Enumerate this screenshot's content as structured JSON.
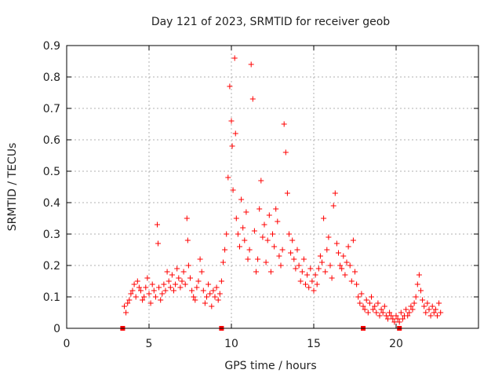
{
  "chart_data": {
    "type": "scatter",
    "title": "Day 121 of 2023, SRMTID for receiver geob",
    "xlabel": "GPS time / hours",
    "ylabel": "SRMTID / TECUs",
    "xlim": [
      0,
      25
    ],
    "ylim": [
      0,
      0.9
    ],
    "xticks": [
      0,
      5,
      10,
      15,
      20
    ],
    "xtick_labels": [
      "0",
      "5",
      "10",
      "15",
      "20"
    ],
    "yticks": [
      0,
      0.1,
      0.2,
      0.3,
      0.4,
      0.5,
      0.6,
      0.7,
      0.8,
      0.9
    ],
    "ytick_labels": [
      "0",
      "0.1",
      "0.2",
      "0.3",
      "0.4",
      "0.5",
      "0.6",
      "0.7",
      "0.8",
      "0.9"
    ],
    "grid": true,
    "legend": "none",
    "colors": {
      "series": "#ff0000",
      "grid": "#b0b0b0",
      "axis": "#000000"
    },
    "series": [
      {
        "name": "SRMTID",
        "marker": "plus",
        "x": [
          3.5,
          3.6,
          3.7,
          3.8,
          3.9,
          4.0,
          4.1,
          4.2,
          4.3,
          4.4,
          4.5,
          4.6,
          4.7,
          4.8,
          4.9,
          5.0,
          5.1,
          5.2,
          5.3,
          5.4,
          5.5,
          5.55,
          5.6,
          5.7,
          5.8,
          5.9,
          6.0,
          6.1,
          6.2,
          6.3,
          6.4,
          6.5,
          6.6,
          6.7,
          6.8,
          6.9,
          7.0,
          7.1,
          7.2,
          7.3,
          7.35,
          7.4,
          7.5,
          7.6,
          7.7,
          7.8,
          7.9,
          8.0,
          8.1,
          8.2,
          8.3,
          8.4,
          8.5,
          8.6,
          8.7,
          8.8,
          8.9,
          9.0,
          9.1,
          9.2,
          9.3,
          9.4,
          9.5,
          9.6,
          9.7,
          9.8,
          9.9,
          10.0,
          10.05,
          10.1,
          10.2,
          10.25,
          10.3,
          10.4,
          10.5,
          10.6,
          10.7,
          10.8,
          10.9,
          11.0,
          11.1,
          11.2,
          11.3,
          11.4,
          11.5,
          11.6,
          11.7,
          11.8,
          11.9,
          12.0,
          12.1,
          12.2,
          12.3,
          12.4,
          12.5,
          12.6,
          12.7,
          12.8,
          12.9,
          13.0,
          13.1,
          13.2,
          13.3,
          13.4,
          13.5,
          13.6,
          13.7,
          13.8,
          13.9,
          14.0,
          14.1,
          14.2,
          14.3,
          14.4,
          14.5,
          14.6,
          14.7,
          14.8,
          14.9,
          15.0,
          15.1,
          15.2,
          15.3,
          15.4,
          15.5,
          15.6,
          15.7,
          15.8,
          15.9,
          16.0,
          16.1,
          16.2,
          16.3,
          16.4,
          16.5,
          16.6,
          16.7,
          16.8,
          16.9,
          17.0,
          17.1,
          17.2,
          17.3,
          17.4,
          17.5,
          17.6,
          17.7,
          17.8,
          17.9,
          18.0,
          18.1,
          18.2,
          18.3,
          18.4,
          18.5,
          18.6,
          18.7,
          18.8,
          18.9,
          19.0,
          19.1,
          19.2,
          19.3,
          19.4,
          19.5,
          19.6,
          19.7,
          19.8,
          19.9,
          20.0,
          20.1,
          20.2,
          20.3,
          20.4,
          20.5,
          20.6,
          20.7,
          20.8,
          20.9,
          21.0,
          21.1,
          21.2,
          21.3,
          21.4,
          21.5,
          21.6,
          21.7,
          21.8,
          21.9,
          22.0,
          22.1,
          22.2,
          22.3,
          22.4,
          22.5,
          22.6,
          22.7
        ],
        "y": [
          0.07,
          0.05,
          0.08,
          0.09,
          0.11,
          0.12,
          0.14,
          0.1,
          0.15,
          0.13,
          0.12,
          0.09,
          0.1,
          0.13,
          0.16,
          0.11,
          0.08,
          0.14,
          0.12,
          0.1,
          0.33,
          0.27,
          0.13,
          0.09,
          0.11,
          0.14,
          0.12,
          0.18,
          0.15,
          0.13,
          0.17,
          0.12,
          0.14,
          0.19,
          0.16,
          0.13,
          0.15,
          0.18,
          0.14,
          0.35,
          0.28,
          0.2,
          0.16,
          0.12,
          0.1,
          0.09,
          0.13,
          0.15,
          0.22,
          0.18,
          0.12,
          0.08,
          0.1,
          0.14,
          0.11,
          0.07,
          0.12,
          0.1,
          0.13,
          0.09,
          0.11,
          0.15,
          0.21,
          0.25,
          0.3,
          0.48,
          0.77,
          0.66,
          0.58,
          0.44,
          0.86,
          0.62,
          0.35,
          0.3,
          0.26,
          0.41,
          0.32,
          0.28,
          0.37,
          0.22,
          0.25,
          0.84,
          0.73,
          0.31,
          0.18,
          0.22,
          0.38,
          0.47,
          0.29,
          0.33,
          0.21,
          0.28,
          0.36,
          0.18,
          0.3,
          0.26,
          0.38,
          0.34,
          0.23,
          0.2,
          0.25,
          0.65,
          0.56,
          0.43,
          0.3,
          0.24,
          0.28,
          0.22,
          0.19,
          0.25,
          0.2,
          0.15,
          0.18,
          0.22,
          0.14,
          0.17,
          0.13,
          0.19,
          0.15,
          0.12,
          0.17,
          0.14,
          0.19,
          0.23,
          0.21,
          0.35,
          0.18,
          0.25,
          0.29,
          0.2,
          0.16,
          0.39,
          0.43,
          0.27,
          0.24,
          0.2,
          0.19,
          0.23,
          0.17,
          0.21,
          0.26,
          0.2,
          0.15,
          0.28,
          0.18,
          0.14,
          0.1,
          0.08,
          0.11,
          0.07,
          0.06,
          0.09,
          0.05,
          0.08,
          0.1,
          0.06,
          0.07,
          0.05,
          0.08,
          0.04,
          0.06,
          0.05,
          0.07,
          0.04,
          0.03,
          0.05,
          0.04,
          0.03,
          0.02,
          0.04,
          0.03,
          0.02,
          0.05,
          0.03,
          0.04,
          0.06,
          0.04,
          0.05,
          0.07,
          0.06,
          0.08,
          0.1,
          0.14,
          0.17,
          0.12,
          0.09,
          0.07,
          0.05,
          0.08,
          0.06,
          0.04,
          0.07,
          0.05,
          0.06,
          0.04,
          0.08,
          0.05
        ]
      }
    ],
    "gap_markers_x": [
      3.4,
      9.4,
      18.0,
      20.2
    ]
  }
}
